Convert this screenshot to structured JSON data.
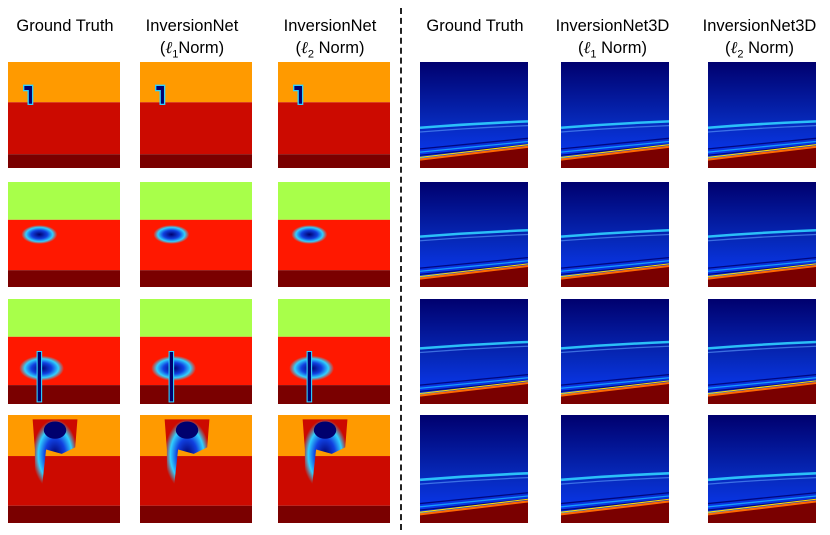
{
  "left_headers": [
    {
      "line1": "Ground Truth",
      "line2": ""
    },
    {
      "line1": "InversionNet",
      "line2_pre": "(",
      "norm_symbol": "ℓ",
      "norm_index": "1",
      "line2_post": "Norm)"
    },
    {
      "line1": "InversionNet",
      "line2_pre": "(",
      "norm_symbol": "ℓ",
      "norm_index": "2",
      "line2_post": " Norm)"
    }
  ],
  "right_headers": [
    {
      "line1": "Ground Truth",
      "line2": ""
    },
    {
      "line1": "InversionNet3D",
      "line2_pre": "(",
      "norm_symbol": "ℓ",
      "norm_index": "1",
      "line2_post": " Norm)"
    },
    {
      "line1": "InversionNet3D",
      "line2_pre": "(",
      "norm_symbol": "ℓ",
      "norm_index": "2",
      "line2_post": " Norm)"
    }
  ],
  "colors": {
    "orange": "#ff9a00",
    "red": "#cc0a00",
    "dark_red": "#7a0000",
    "lime": "#a8ff4a",
    "bright_red": "#ff1800",
    "deep_blue": "#00006e",
    "blue": "#1040e0",
    "cyan": "#30d0ff"
  },
  "figure": {
    "rows": 4,
    "left_columns": 3,
    "right_columns": 3
  }
}
